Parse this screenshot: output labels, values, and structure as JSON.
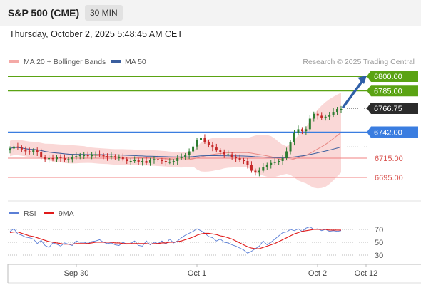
{
  "header": {
    "instrument": "S&P 500 (CME)",
    "timeframe": "30 MIN",
    "datetime": "Thursday, October 2, 2025 5:48:45 AM CET"
  },
  "colors": {
    "candle_up": "#2e7d32",
    "candle_down": "#c62828",
    "bollinger": "#f4a9a6",
    "ma50": "#3a5e9e",
    "resistance": "#5aa313",
    "support": "#3a7de0",
    "pivot": "#f08080",
    "arrow": "#2f5fa8",
    "rsi": "#5b7fd6",
    "rsi_ma": "#e01a1a"
  },
  "chart_data": [
    {
      "type": "candlestick",
      "legend": [
        {
          "label": "MA 20 + Bollinger Bands",
          "color": "#f4a9a6"
        },
        {
          "label": "MA 50",
          "color": "#3a5e9e"
        }
      ],
      "credit": "Research © 2025 Trading Central",
      "x_ticks": [
        "Sep 30",
        "Oct 1",
        "Oct 2",
        "Oct 12"
      ],
      "y_axis_visible": false,
      "levels": [
        {
          "value": "6800.00",
          "num": 6800,
          "kind": "resistance"
        },
        {
          "value": "6785.00",
          "num": 6785,
          "kind": "resistance"
        },
        {
          "value": "6742.00",
          "num": 6742,
          "kind": "support"
        },
        {
          "value": "6715.00",
          "num": 6715,
          "kind": "pivot"
        },
        {
          "value": "6695.00",
          "num": 6695,
          "kind": "pivot"
        }
      ],
      "last_price": {
        "value": "6766.75",
        "num": 6766.75
      },
      "close_series": [
        6725,
        6727,
        6726,
        6724,
        6722,
        6721,
        6723,
        6721,
        6716,
        6714,
        6715,
        6714,
        6716,
        6715,
        6713,
        6714,
        6716,
        6717,
        6718,
        6718,
        6717,
        6719,
        6719,
        6718,
        6717,
        6716,
        6717,
        6716,
        6716,
        6714,
        6712,
        6712,
        6713,
        6711,
        6712,
        6710,
        6713,
        6714,
        6713,
        6712,
        6711,
        6711,
        6712,
        6715,
        6716,
        6718,
        6722,
        6727,
        6734,
        6736,
        6732,
        6729,
        6726,
        6723,
        6721,
        6719,
        6719,
        6716,
        6715,
        6713,
        6712,
        6708,
        6702,
        6700,
        6702,
        6706,
        6708,
        6710,
        6711,
        6712,
        6715,
        6722,
        6732,
        6741,
        6745,
        6743,
        6745,
        6756,
        6761,
        6759,
        6757,
        6758,
        6760,
        6763,
        6766,
        6766
      ]
    },
    {
      "type": "line",
      "legend": [
        {
          "label": "RSI",
          "color": "#5b7fd6"
        },
        {
          "label": "9MA",
          "color": "#e01a1a"
        }
      ],
      "y_ticks": [
        "70",
        "50",
        "30"
      ],
      "ylim": [
        20,
        80
      ],
      "series": [
        {
          "name": "RSI",
          "values": [
            67,
            71,
            63,
            61,
            58,
            57,
            55,
            48,
            53,
            45,
            42,
            49,
            47,
            44,
            49,
            47,
            45,
            52,
            50,
            50,
            48,
            51,
            52,
            54,
            50,
            48,
            49,
            46,
            45,
            50,
            47,
            48,
            52,
            45,
            44,
            52,
            46,
            50,
            48,
            52,
            47,
            55,
            49,
            52,
            57,
            61,
            64,
            67,
            71,
            68,
            64,
            59,
            57,
            52,
            55,
            50,
            49,
            46,
            44,
            41,
            38,
            33,
            36,
            40,
            44,
            52,
            46,
            50,
            55,
            60,
            65,
            66,
            70,
            68,
            71,
            67,
            72,
            74,
            70,
            71,
            68,
            70,
            67,
            68,
            67,
            68
          ]
        },
        {
          "name": "9MA",
          "values": [
            65,
            66,
            66,
            64,
            62,
            60,
            59,
            57,
            55,
            53,
            51,
            50,
            49,
            48,
            47,
            47,
            47,
            48,
            48,
            48,
            48,
            49,
            50,
            50,
            50,
            50,
            50,
            49,
            49,
            48,
            48,
            48,
            48,
            48,
            48,
            48,
            47,
            48,
            48,
            49,
            49,
            50,
            50,
            51,
            52,
            54,
            56,
            58,
            61,
            63,
            64,
            64,
            63,
            62,
            60,
            59,
            57,
            55,
            52,
            49,
            46,
            43,
            41,
            40,
            40,
            42,
            44,
            46,
            48,
            51,
            54,
            57,
            60,
            63,
            65,
            67,
            68,
            69,
            70,
            70,
            70,
            70,
            69,
            69,
            69,
            69
          ]
        }
      ]
    }
  ]
}
